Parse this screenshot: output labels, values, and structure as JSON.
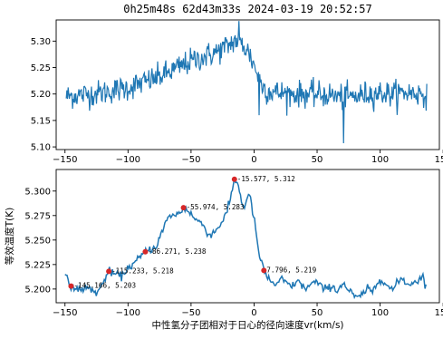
{
  "chart_data": [
    {
      "type": "line",
      "title": "0h25m48s 62d43m33s 2024-03-19 20:52:57",
      "xlabel": "",
      "ylabel": "",
      "xlim": [
        -157,
        147
      ],
      "ylim": [
        5.095,
        5.34
      ],
      "xticks": [
        "-150",
        "-100",
        "-50",
        "0",
        "50",
        "100",
        "150"
      ],
      "yticks": [
        "5.10",
        "5.15",
        "5.20",
        "5.25",
        "5.30"
      ],
      "grid": false,
      "color": "#1f77b4",
      "series": [
        {
          "x": [
            -150,
            -140,
            -130,
            -120,
            -110,
            -100,
            -90,
            -80,
            -70,
            -60,
            -50,
            -40,
            -30,
            -20,
            -15,
            -10,
            -5,
            0,
            5,
            10,
            20,
            30,
            40,
            50,
            60,
            70,
            80,
            90,
            100,
            110,
            120,
            130,
            137
          ],
          "y": [
            5.195,
            5.198,
            5.2,
            5.203,
            5.207,
            5.212,
            5.22,
            5.228,
            5.238,
            5.25,
            5.262,
            5.27,
            5.279,
            5.292,
            5.302,
            5.295,
            5.282,
            5.255,
            5.222,
            5.206,
            5.202,
            5.2,
            5.2,
            5.199,
            5.198,
            5.194,
            5.195,
            5.2,
            5.202,
            5.2,
            5.203,
            5.201,
            5.2
          ],
          "noise": 0.012,
          "outliers": [
            {
              "x": 71,
              "y": 5.107
            },
            {
              "x": -12,
              "y": 5.338
            },
            {
              "x": 4,
              "y": 5.16
            }
          ]
        }
      ]
    },
    {
      "type": "line",
      "title": "",
      "xlabel": "中性氢分子团相对于日心的径向速度vr(km/s)",
      "ylabel": "等效温度T(K)",
      "xlim": [
        -157,
        147
      ],
      "ylim": [
        5.186,
        5.322
      ],
      "xticks": [
        "-150",
        "-100",
        "-50",
        "0",
        "50",
        "100",
        "150"
      ],
      "yticks": [
        "5.200",
        "5.225",
        "5.250",
        "5.275",
        "5.300"
      ],
      "grid": false,
      "color": "#1f77b4",
      "series": [
        {
          "x": [
            -150,
            -147,
            -145,
            -140,
            -135,
            -130,
            -125,
            -120,
            -117,
            -115,
            -110,
            -105,
            -100,
            -95,
            -90,
            -86.271,
            -82,
            -78,
            -74,
            -70,
            -66,
            -62,
            -58,
            -55.974,
            -52,
            -48,
            -44,
            -40,
            -36,
            -33,
            -30,
            -27,
            -24,
            -21,
            -18,
            -15.577,
            -13,
            -11,
            -9,
            -7,
            -5,
            -3,
            -1,
            1,
            3,
            5,
            7.796,
            10,
            14,
            18,
            22,
            26,
            30,
            34,
            38,
            42,
            46,
            50,
            54,
            58,
            62,
            66,
            70,
            74,
            78,
            82,
            86,
            90,
            94,
            98,
            102,
            106,
            110,
            114,
            118,
            122,
            126,
            130,
            134,
            137
          ],
          "y": [
            5.215,
            5.205,
            5.203,
            5.199,
            5.201,
            5.2,
            5.196,
            5.205,
            5.215,
            5.218,
            5.215,
            5.213,
            5.222,
            5.226,
            5.233,
            5.238,
            5.241,
            5.243,
            5.255,
            5.268,
            5.276,
            5.275,
            5.279,
            5.283,
            5.28,
            5.273,
            5.269,
            5.265,
            5.255,
            5.257,
            5.26,
            5.266,
            5.272,
            5.28,
            5.297,
            5.312,
            5.309,
            5.296,
            5.284,
            5.286,
            5.296,
            5.293,
            5.278,
            5.264,
            5.243,
            5.23,
            5.219,
            5.213,
            5.207,
            5.204,
            5.21,
            5.206,
            5.202,
            5.209,
            5.203,
            5.201,
            5.206,
            5.207,
            5.201,
            5.2,
            5.204,
            5.197,
            5.207,
            5.2,
            5.195,
            5.19,
            5.195,
            5.2,
            5.197,
            5.207,
            5.211,
            5.203,
            5.199,
            5.207,
            5.211,
            5.204,
            5.207,
            5.209,
            5.213,
            5.2
          ],
          "noise": 0.002
        }
      ],
      "annotations": [
        {
          "x": -145.166,
          "y": 5.203,
          "text": "-145.166, 5.203"
        },
        {
          "x": -115.233,
          "y": 5.218,
          "text": "-115.233, 5.218"
        },
        {
          "x": -86.271,
          "y": 5.238,
          "text": "-86.271, 5.238"
        },
        {
          "x": -55.974,
          "y": 5.283,
          "text": "-55.974, 5.283"
        },
        {
          "x": -15.577,
          "y": 5.312,
          "text": "-15.577, 5.312"
        },
        {
          "x": 7.796,
          "y": 5.219,
          "text": "7.796, 5.219"
        }
      ],
      "marker_color": "#d62728"
    }
  ]
}
